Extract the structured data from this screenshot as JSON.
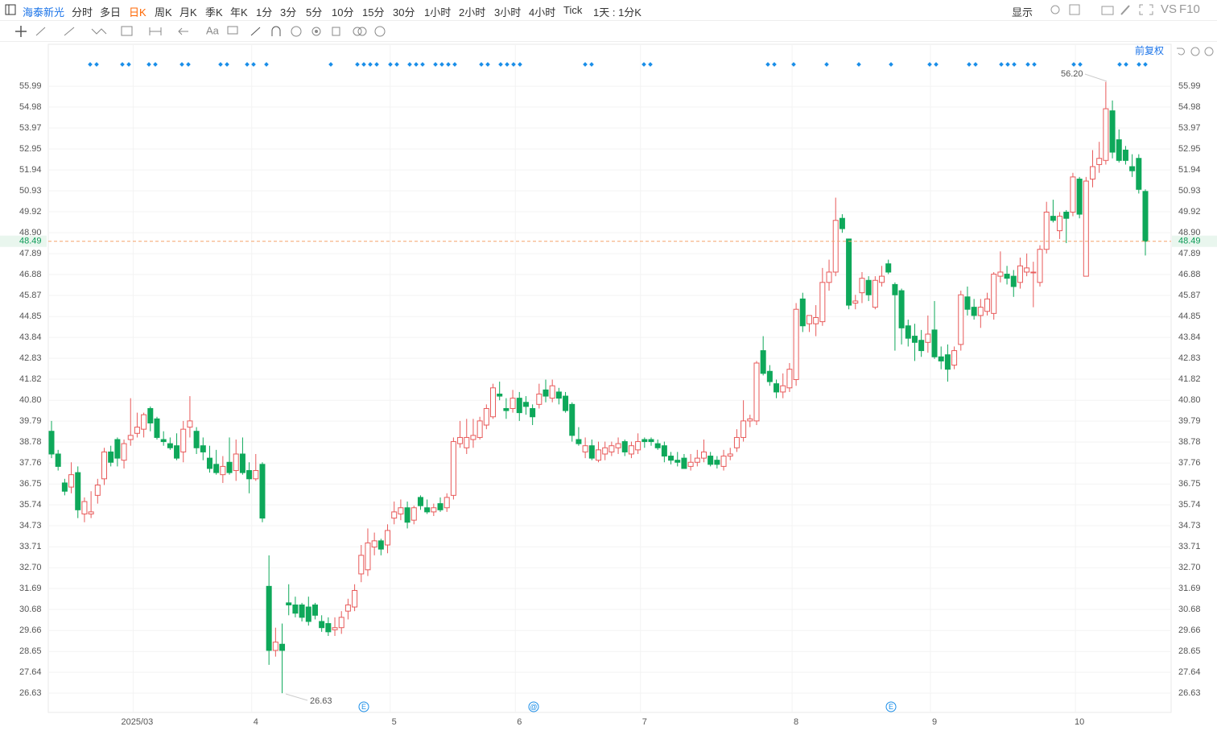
{
  "toolbar": {
    "symbol": "海泰新光",
    "periods": [
      "分时",
      "多日",
      "日K",
      "周K",
      "月K",
      "季K",
      "年K",
      "1分",
      "3分",
      "5分",
      "10分",
      "15分",
      "30分",
      "1小时",
      "2小时",
      "3小时",
      "4小时",
      "Tick"
    ],
    "active_period": 2,
    "interval": "1天 : 1分K",
    "display": "显示",
    "compare": "VS",
    "f10": "F10",
    "text_tool": "Aa",
    "adjust": "前复权"
  },
  "chart_data": {
    "type": "candlestick",
    "up_color": "#e85a5a",
    "down_color": "#0ea85a",
    "grid": true,
    "ylim": [
      25.7,
      57.24
    ],
    "yticks": [
      26.63,
      27.64,
      28.65,
      29.66,
      30.68,
      31.69,
      {
        "value": 32.7,
        "label": "32.70"
      },
      33.71,
      34.73,
      35.74,
      36.75,
      37.76,
      38.78,
      39.79,
      {
        "value": 40.8,
        "label": "40.80"
      },
      41.82,
      42.83,
      43.84,
      44.85,
      45.87,
      46.88,
      47.89,
      {
        "value": 48.9,
        "label": "48.90"
      },
      49.92,
      50.93,
      51.94,
      52.95,
      53.97,
      54.98,
      55.99
    ],
    "last_price": 48.49,
    "annotations": [
      "56.20",
      "26.63"
    ],
    "events": [
      "E",
      "@",
      "E"
    ],
    "categories": [
      null,
      null,
      null,
      null,
      null,
      null,
      null,
      null,
      null,
      null,
      null,
      null,
      null,
      "2025/03",
      null,
      null,
      null,
      null,
      null,
      null,
      null,
      null,
      null,
      null,
      null,
      null,
      null,
      null,
      null,
      null,
      null,
      "4",
      null,
      null,
      null,
      null,
      null,
      null,
      null,
      null,
      null,
      null,
      null,
      null,
      null,
      null,
      null,
      null,
      null,
      null,
      null,
      null,
      "5",
      null,
      null,
      null,
      null,
      null,
      null,
      null,
      null,
      null,
      null,
      null,
      null,
      null,
      null,
      null,
      null,
      null,
      null,
      "6",
      null,
      null,
      null,
      null,
      null,
      null,
      null,
      null,
      null,
      null,
      null,
      null,
      null,
      null,
      null,
      null,
      null,
      null,
      "7",
      null,
      null,
      null,
      null,
      null,
      null,
      null,
      null,
      null,
      null,
      null,
      null,
      null,
      null,
      null,
      null,
      null,
      null,
      null,
      null,
      null,
      null,
      "8",
      null,
      null,
      null,
      null,
      null,
      null,
      null,
      null,
      null,
      null,
      null,
      null,
      null,
      null,
      null,
      null,
      null,
      null,
      null,
      null,
      "9",
      null,
      null,
      null,
      null,
      null,
      null,
      null,
      null,
      null,
      null,
      null,
      null,
      null,
      null,
      null,
      null,
      null,
      null,
      null,
      null,
      null,
      "10",
      null,
      null,
      null,
      null,
      null,
      null,
      null,
      null,
      null,
      null
    ],
    "open": [
      39.3,
      38.2,
      36.8,
      36.6,
      37.3,
      35.3,
      35.3,
      36.2,
      37.0,
      38.3,
      38.9,
      37.9,
      38.9,
      39.2,
      39.4,
      40.4,
      39.9,
      38.9,
      38.7,
      38.6,
      38.3,
      39.5,
      39.3,
      38.6,
      38.0,
      37.7,
      37.2,
      37.8,
      37.4,
      38.2,
      37.4,
      37.0,
      37.7,
      31.8,
      28.7,
      29.0,
      31.0,
      30.9,
      30.9,
      30.8,
      30.9,
      30.1,
      30.0,
      29.7,
      29.8,
      30.6,
      30.8,
      32.4,
      32.6,
      33.7,
      34.0,
      33.8,
      35.1,
      35.3,
      35.6,
      35.0,
      36.1,
      35.6,
      35.4,
      35.8,
      35.6,
      36.2,
      38.7,
      38.5,
      38.9,
      39.0,
      39.6,
      40.0,
      41.1,
      40.4,
      40.4,
      40.9,
      40.7,
      40.4,
      40.6,
      41.3,
      40.9,
      41.2,
      41.0,
      40.6,
      38.9,
      38.3,
      38.6,
      37.9,
      38.2,
      38.3,
      38.5,
      38.8,
      38.2,
      38.4,
      38.9,
      38.9,
      38.7,
      38.6,
      38.1,
      37.9,
      38.0,
      37.6,
      37.8,
      38.0,
      38.1,
      37.9,
      37.6,
      38.1,
      38.5,
      39.0,
      39.8,
      39.8,
      43.2,
      42.2,
      41.6,
      41.2,
      41.4,
      41.8,
      45.7,
      44.5,
      44.5,
      44.6,
      46.5,
      47.0,
      49.6,
      48.6,
      45.5,
      46.0,
      46.6,
      45.3,
      46.5,
      47.4,
      46.4,
      46.1,
      44.4,
      43.9,
      43.7,
      43.6,
      44.2,
      42.9,
      43.0,
      42.5,
      43.5,
      45.8,
      45.3,
      44.9,
      45.1,
      45.0,
      46.8,
      46.9,
      46.8,
      46.5,
      47.0,
      47.0,
      46.5,
      48.1,
      49.7,
      49.0,
      49.9,
      49.9,
      51.5,
      46.8,
      51.5,
      52.2,
      52.4,
      54.8,
      53.4,
      52.9,
      52.1,
      52.5,
      50.9
    ],
    "high": [
      39.8,
      38.4,
      37.0,
      37.8,
      37.6,
      36.1,
      36.4,
      37.0,
      38.5,
      38.6,
      39.0,
      38.9,
      40.9,
      40.2,
      40.2,
      40.5,
      40.0,
      39.3,
      39.0,
      39.2,
      39.8,
      41.0,
      39.5,
      39.0,
      38.6,
      38.4,
      38.1,
      39.0,
      38.9,
      39.0,
      37.8,
      38.2,
      37.8,
      33.3,
      29.8,
      30.0,
      31.9,
      31.3,
      31.0,
      31.3,
      31.0,
      30.4,
      30.3,
      30.3,
      30.6,
      31.2,
      31.9,
      33.8,
      34.6,
      34.4,
      34.1,
      34.8,
      35.9,
      36.0,
      35.9,
      35.7,
      36.2,
      36.0,
      35.8,
      36.1,
      36.3,
      39.0,
      39.8,
      39.9,
      39.9,
      40.0,
      40.6,
      41.6,
      41.7,
      40.9,
      41.3,
      41.2,
      41.0,
      40.6,
      41.6,
      41.8,
      41.8,
      41.4,
      41.2,
      40.7,
      39.5,
      39.0,
      38.9,
      38.8,
      38.8,
      38.8,
      39.0,
      38.9,
      38.8,
      39.2,
      39.0,
      39.0,
      38.9,
      38.8,
      38.3,
      38.3,
      38.2,
      38.2,
      38.4,
      38.9,
      38.3,
      38.1,
      38.4,
      38.5,
      39.4,
      40.8,
      40.1,
      42.7,
      43.9,
      42.5,
      41.8,
      42.1,
      42.6,
      45.5,
      46.0,
      44.9,
      45.4,
      47.2,
      47.6,
      50.6,
      49.8,
      48.6,
      45.9,
      47.0,
      46.8,
      46.8,
      47.3,
      47.6,
      46.5,
      46.2,
      44.7,
      44.5,
      44.2,
      44.9,
      45.6,
      43.4,
      43.5,
      43.4,
      46.1,
      46.3,
      45.7,
      45.7,
      46.0,
      47.0,
      48.0,
      47.3,
      47.1,
      47.7,
      47.9,
      47.5,
      48.3,
      50.4,
      50.5,
      49.9,
      50.0,
      51.8,
      51.6,
      51.6,
      52.9,
      53.3,
      56.2,
      55.3,
      53.9,
      53.1,
      52.7,
      52.7,
      51.0
    ],
    "low": [
      38.0,
      37.4,
      36.2,
      36.3,
      35.1,
      34.9,
      35.1,
      35.8,
      36.7,
      37.6,
      37.6,
      37.5,
      38.6,
      39.0,
      39.0,
      39.3,
      38.9,
      38.6,
      38.4,
      37.9,
      37.8,
      39.0,
      38.2,
      37.9,
      37.3,
      37.2,
      36.8,
      37.2,
      36.9,
      37.2,
      36.3,
      36.9,
      34.9,
      28.0,
      28.4,
      26.63,
      30.4,
      30.3,
      30.1,
      29.9,
      30.2,
      29.6,
      29.4,
      29.4,
      29.5,
      30.2,
      30.6,
      32.0,
      32.3,
      33.3,
      33.3,
      33.4,
      34.8,
      35.0,
      34.6,
      34.8,
      35.5,
      35.3,
      35.2,
      35.4,
      35.4,
      36.0,
      38.5,
      38.2,
      38.5,
      38.9,
      39.4,
      39.9,
      40.8,
      39.9,
      40.2,
      39.8,
      40.1,
      39.6,
      40.4,
      40.7,
      40.7,
      40.6,
      40.2,
      38.8,
      38.6,
      38.0,
      37.9,
      37.8,
      37.9,
      38.1,
      38.2,
      38.1,
      38.0,
      38.2,
      38.5,
      38.6,
      38.4,
      37.8,
      37.7,
      37.6,
      37.5,
      37.4,
      37.6,
      37.8,
      37.6,
      37.5,
      37.4,
      37.9,
      38.3,
      38.8,
      39.5,
      39.6,
      42.0,
      41.5,
      40.9,
      40.9,
      41.2,
      41.5,
      44.1,
      44.1,
      43.9,
      44.4,
      46.1,
      46.8,
      48.9,
      45.2,
      45.2,
      45.5,
      45.6,
      45.2,
      46.3,
      46.9,
      43.2,
      43.5,
      43.4,
      42.7,
      42.9,
      43.1,
      42.8,
      42.3,
      41.7,
      42.3,
      43.2,
      44.9,
      44.7,
      44.3,
      44.9,
      44.7,
      46.5,
      46.4,
      45.8,
      46.2,
      46.8,
      45.3,
      46.3,
      47.9,
      49.4,
      48.6,
      48.4,
      49.7,
      49.6,
      46.8,
      51.1,
      51.8,
      52.2,
      52.5,
      52.3,
      52.2,
      51.6,
      50.8,
      47.8
    ],
    "close": [
      38.2,
      37.6,
      36.4,
      37.2,
      35.5,
      35.9,
      35.4,
      36.7,
      38.3,
      37.8,
      38.0,
      38.7,
      39.1,
      39.5,
      40.1,
      39.7,
      39.0,
      38.8,
      38.5,
      38.0,
      39.4,
      39.8,
      38.5,
      38.3,
      37.5,
      37.3,
      37.6,
      37.3,
      38.2,
      37.3,
      37.0,
      37.4,
      35.1,
      28.7,
      29.1,
      28.7,
      30.9,
      30.5,
      30.3,
      30.1,
      30.4,
      29.8,
      29.6,
      29.8,
      30.3,
      30.9,
      31.6,
      33.3,
      33.9,
      34.0,
      33.6,
      34.5,
      35.4,
      35.6,
      34.9,
      35.6,
      35.7,
      35.4,
      35.6,
      35.5,
      36.1,
      38.8,
      39.0,
      39.0,
      39.1,
      39.8,
      40.4,
      41.4,
      41.0,
      40.3,
      40.9,
      40.2,
      40.5,
      40.0,
      41.1,
      41.0,
      41.5,
      40.9,
      40.3,
      39.1,
      38.7,
      38.6,
      38.0,
      38.4,
      38.5,
      38.6,
      38.7,
      38.3,
      38.6,
      38.8,
      38.8,
      38.8,
      38.5,
      38.1,
      37.9,
      37.8,
      37.5,
      37.8,
      38.0,
      38.3,
      37.7,
      37.7,
      38.1,
      38.2,
      39.0,
      39.8,
      39.9,
      42.6,
      42.1,
      41.7,
      41.2,
      41.5,
      42.3,
      45.2,
      44.4,
      44.9,
      44.8,
      46.5,
      47.0,
      49.5,
      49.1,
      45.4,
      45.6,
      46.7,
      45.9,
      46.6,
      46.8,
      47.0,
      45.9,
      44.3,
      43.8,
      43.6,
      43.2,
      44.0,
      42.9,
      42.7,
      42.3,
      43.2,
      45.9,
      45.2,
      44.9,
      45.3,
      45.7,
      46.9,
      47.0,
      46.7,
      46.3,
      47.3,
      47.2,
      47.0,
      48.1,
      49.9,
      49.5,
      49.7,
      49.6,
      51.6,
      49.8,
      51.4,
      52.1,
      52.5,
      54.9,
      52.8,
      52.4,
      52.4,
      51.9,
      51.0,
      48.49
    ]
  }
}
